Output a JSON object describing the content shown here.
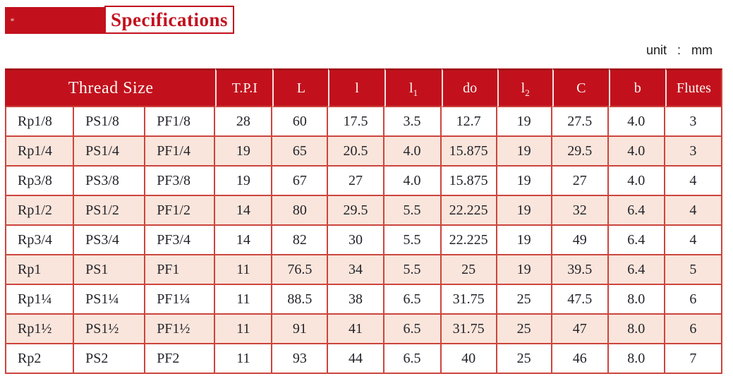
{
  "page": {
    "title": "Specifications",
    "unit_label": "unit",
    "unit_separator": ":",
    "unit_value": "mm"
  },
  "colors": {
    "header_red": "#C2111D",
    "grid_red": "#CC453E",
    "row_pink": "#F9E5DB",
    "row_white": "#FFFFFF",
    "header_text": "#FCF7F3",
    "body_text": "#23232B"
  },
  "table": {
    "thread_size_header": "Thread Size",
    "columns": [
      {
        "label": "T.P.I"
      },
      {
        "label": "L"
      },
      {
        "label": "l"
      },
      {
        "label": "l",
        "sub": "1"
      },
      {
        "label": "do"
      },
      {
        "label": "l",
        "sub": "2"
      },
      {
        "label": "C"
      },
      {
        "label": "b"
      },
      {
        "label": "Flutes"
      }
    ],
    "rows": [
      [
        "Rp1/8",
        "PS1/8",
        "PF1/8",
        "28",
        "60",
        "17.5",
        "3.5",
        "12.7",
        "19",
        "27.5",
        "4.0",
        "3"
      ],
      [
        "Rp1/4",
        "PS1/4",
        "PF1/4",
        "19",
        "65",
        "20.5",
        "4.0",
        "15.875",
        "19",
        "29.5",
        "4.0",
        "3"
      ],
      [
        "Rp3/8",
        "PS3/8",
        "PF3/8",
        "19",
        "67",
        "27",
        "4.0",
        "15.875",
        "19",
        "27",
        "4.0",
        "4"
      ],
      [
        "Rp1/2",
        "PS1/2",
        "PF1/2",
        "14",
        "80",
        "29.5",
        "5.5",
        "22.225",
        "19",
        "32",
        "6.4",
        "4"
      ],
      [
        "Rp3/4",
        "PS3/4",
        "PF3/4",
        "14",
        "82",
        "30",
        "5.5",
        "22.225",
        "19",
        "49",
        "6.4",
        "4"
      ],
      [
        "Rp1",
        "PS1",
        "PF1",
        "11",
        "76.5",
        "34",
        "5.5",
        "25",
        "19",
        "39.5",
        "6.4",
        "5"
      ],
      [
        "Rp1¼",
        "PS1¼",
        "PF1¼",
        "11",
        "88.5",
        "38",
        "6.5",
        "31.75",
        "25",
        "47.5",
        "8.0",
        "6"
      ],
      [
        "Rp1½",
        "PS1½",
        "PF1½",
        "11",
        "91",
        "41",
        "6.5",
        "31.75",
        "25",
        "47",
        "8.0",
        "6"
      ],
      [
        "Rp2",
        "PS2",
        "PF2",
        "11",
        "93",
        "44",
        "6.5",
        "40",
        "25",
        "46",
        "8.0",
        "7"
      ]
    ]
  }
}
